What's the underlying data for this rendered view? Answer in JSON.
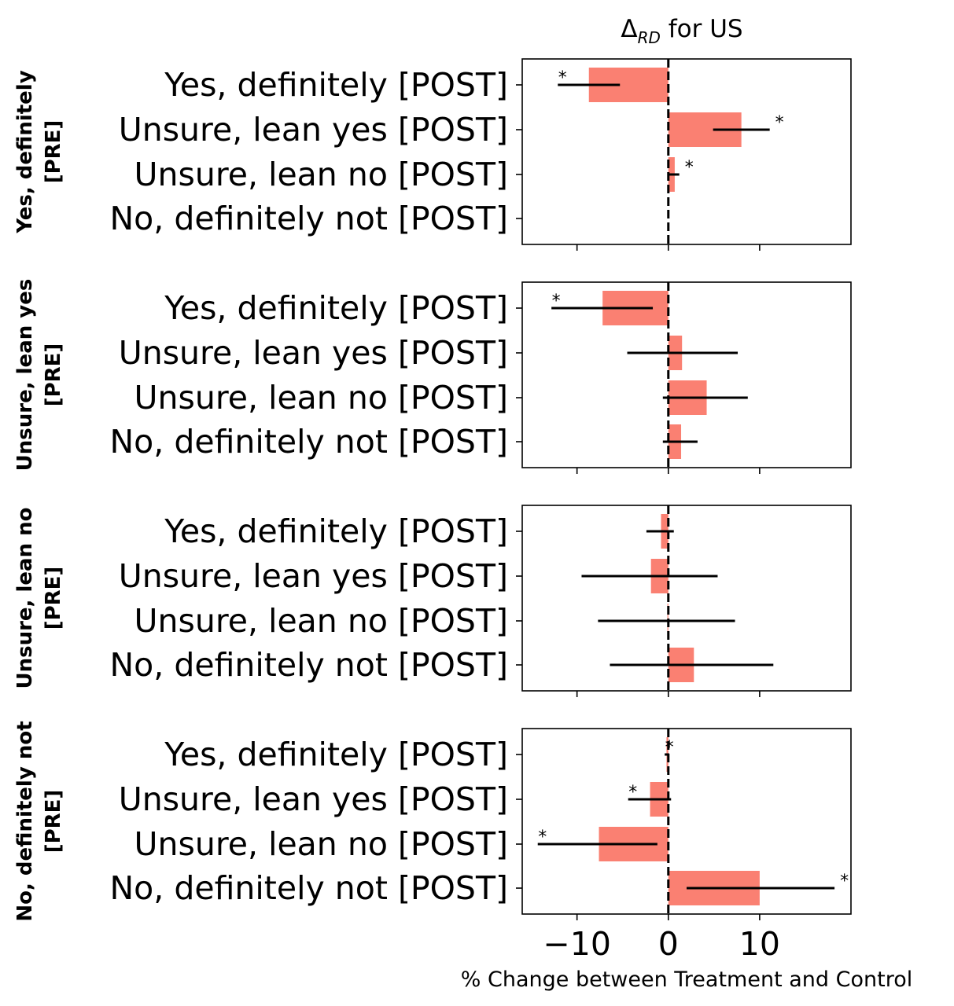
{
  "chart_data": {
    "type": "bar",
    "orientation": "horizontal",
    "title_main": "Δ",
    "title_sub": "RD",
    "title_rest": " for US",
    "xlabel": "% Change between Treatment and Control",
    "xlim": [
      -16,
      20
    ],
    "xticks": [
      -10,
      0,
      10
    ],
    "xtick_labels": [
      "−10",
      "0",
      "10"
    ],
    "reference_line_x": 0,
    "bar_color": "#fa8072",
    "categories": [
      "Yes, definitely [POST]",
      "Unsure, lean yes [POST]",
      "Unsure, lean no [POST]",
      "No, definitely not [POST]"
    ],
    "panels": [
      {
        "row_label_lines": [
          "Yes, definitely",
          "[PRE]"
        ],
        "values": [
          -8.7,
          8.0,
          0.7,
          0.0
        ],
        "ci_low": [
          -12.1,
          4.9,
          0.0,
          null
        ],
        "ci_high": [
          -5.3,
          11.1,
          1.2,
          null
        ],
        "significant": [
          true,
          true,
          true,
          false
        ]
      },
      {
        "row_label_lines": [
          "Unsure, lean yes",
          "[PRE]"
        ],
        "values": [
          -7.2,
          1.5,
          4.2,
          1.4
        ],
        "ci_low": [
          -12.8,
          -4.5,
          -0.6,
          -0.6
        ],
        "ci_high": [
          -1.7,
          7.6,
          8.7,
          3.2
        ],
        "significant": [
          true,
          false,
          false,
          false
        ]
      },
      {
        "row_label_lines": [
          "Unsure, lean no",
          "[PRE]"
        ],
        "values": [
          -0.8,
          -1.9,
          -0.1,
          2.8
        ],
        "ci_low": [
          -2.4,
          -9.5,
          -7.7,
          -6.4
        ],
        "ci_high": [
          0.6,
          5.4,
          7.3,
          11.5
        ],
        "significant": [
          false,
          false,
          false,
          false
        ]
      },
      {
        "row_label_lines": [
          "No, definitely not",
          "[PRE]"
        ],
        "values": [
          -0.2,
          -2.0,
          -7.6,
          10.0
        ],
        "ci_low": [
          -0.4,
          -4.4,
          -14.3,
          2.0
        ],
        "ci_high": [
          0.1,
          0.3,
          -1.2,
          18.2
        ],
        "significant": [
          true,
          true,
          true,
          true
        ]
      }
    ],
    "significance_marker": "*",
    "grid": false,
    "legend": "none"
  }
}
